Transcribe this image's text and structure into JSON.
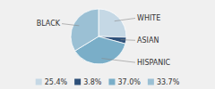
{
  "chart_data": {
    "type": "pie",
    "categories": [
      "WHITE",
      "ASIAN",
      "HISPANIC",
      "BLACK"
    ],
    "values": [
      25.4,
      3.8,
      37.0,
      33.7
    ],
    "value_labels": [
      "25.4%",
      "3.8%",
      "37.0%",
      "33.7%"
    ],
    "colors": [
      "#c5d8e5",
      "#2e5079",
      "#7aaec8",
      "#9bc0d4"
    ],
    "legend": "bottom"
  }
}
